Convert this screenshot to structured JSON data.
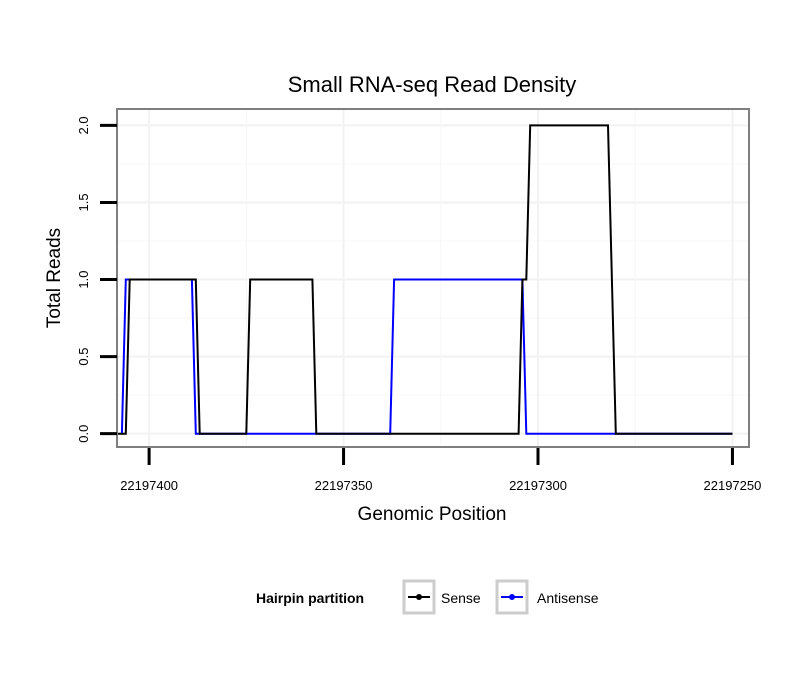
{
  "chart_data": {
    "type": "line",
    "title": "Small RNA-seq Read Density",
    "xlabel": "Genomic Position",
    "ylabel": "Total Reads",
    "xlim": [
      22197408,
      22197246
    ],
    "x_reversed": true,
    "ylim": [
      -0.08,
      2.1
    ],
    "x_ticks": [
      22197400,
      22197350,
      22197300,
      22197250
    ],
    "x_tick_labels": [
      "22197400",
      "22197350",
      "22197300",
      "22197250"
    ],
    "y_ticks": [
      0.0,
      0.5,
      1.0,
      1.5,
      2.0
    ],
    "y_tick_labels": [
      "0.0",
      "0.5",
      "1.0",
      "1.5",
      "2.0"
    ],
    "grid": true,
    "legend": {
      "title": "Hairpin partition",
      "position": "bottom"
    },
    "series": [
      {
        "name": "Sense",
        "color": "#000000",
        "x": [
          22197408,
          22197406,
          22197405,
          22197388,
          22197387,
          22197375,
          22197374,
          22197358,
          22197357,
          22197330,
          22197329,
          22197305,
          22197304,
          22197303,
          22197302,
          22197282,
          22197280,
          22197250
        ],
        "y": [
          0,
          0,
          1,
          1,
          0,
          0,
          1,
          1,
          0,
          0,
          0,
          0,
          1,
          1,
          2,
          2,
          0,
          0
        ]
      },
      {
        "name": "Antisense",
        "color": "#0000ff",
        "x": [
          22197407,
          22197406,
          22197389,
          22197388,
          22197338,
          22197337,
          22197304,
          22197303,
          22197250
        ],
        "y": [
          0,
          1,
          1,
          0,
          0,
          1,
          1,
          0,
          0
        ]
      }
    ]
  }
}
